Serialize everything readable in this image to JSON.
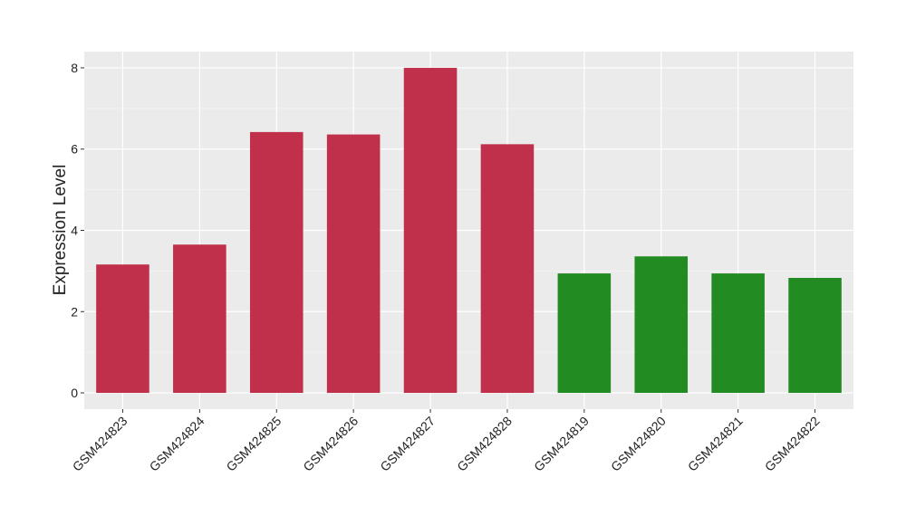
{
  "chart_data": {
    "type": "bar",
    "y_label": "Expression Level",
    "categories": [
      "GSM424823",
      "GSM424824",
      "GSM424825",
      "GSM424826",
      "GSM424827",
      "GSM424828",
      "GSM424819",
      "GSM424820",
      "GSM424821",
      "GSM424822"
    ],
    "values": [
      3.16,
      3.65,
      6.42,
      6.36,
      8.0,
      6.12,
      2.94,
      3.36,
      2.94,
      2.83
    ],
    "colors": [
      "#c1304a",
      "#c1304a",
      "#c1304a",
      "#c1304a",
      "#c1304a",
      "#c1304a",
      "#228b22",
      "#228b22",
      "#228b22",
      "#228b22"
    ],
    "ylim": [
      -0.4,
      8.4
    ],
    "yticks": [
      0,
      2,
      4,
      6,
      8
    ],
    "grid": true,
    "minor_grid": true
  }
}
